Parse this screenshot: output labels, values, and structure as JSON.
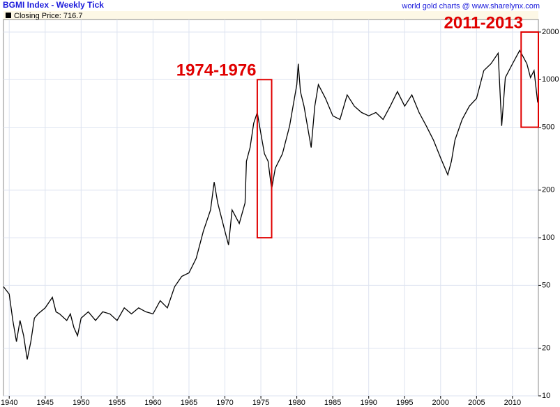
{
  "chart_data": {
    "type": "line",
    "title": "BGMI Index - Weekly Tick",
    "source": "world gold charts @ www.sharelynx.com",
    "log_scale": true,
    "grid": true,
    "xlim": [
      1939.2,
      2013.6
    ],
    "ylim": [
      10,
      2400
    ],
    "xticks": [
      1940,
      1945,
      1950,
      1955,
      1960,
      1965,
      1970,
      1975,
      1980,
      1985,
      1990,
      1995,
      2000,
      2005,
      2010
    ],
    "yticks": [
      10,
      20,
      50,
      100,
      200,
      500,
      1000,
      2000
    ],
    "x": [
      1939.2,
      1940,
      1940.5,
      1941,
      1941.5,
      1942,
      1942.5,
      1943,
      1943.5,
      1944,
      1945,
      1946,
      1946.5,
      1947,
      1948,
      1948.5,
      1949,
      1949.5,
      1950,
      1951,
      1952,
      1953,
      1954,
      1955,
      1956,
      1957,
      1958,
      1959,
      1960,
      1961,
      1962,
      1963,
      1964,
      1965,
      1966,
      1967,
      1968,
      1968.5,
      1969,
      1970,
      1970.5,
      1971,
      1972,
      1972.8,
      1973,
      1973.5,
      1974,
      1974.5,
      1975,
      1975.5,
      1976,
      1976.5,
      1977,
      1978,
      1979,
      1980,
      1980.2,
      1980.5,
      1981,
      1982,
      1982.5,
      1983,
      1984,
      1985,
      1986,
      1987,
      1988,
      1989,
      1990,
      1991,
      1992,
      1993,
      1994,
      1995,
      1996,
      1997,
      1998,
      1999,
      2000,
      2001,
      2001.5,
      2002,
      2003,
      2004,
      2005,
      2006,
      2007,
      2008,
      2008.5,
      2009,
      2010,
      2011,
      2011.5,
      2012,
      2012.5,
      2013,
      2013.5
    ],
    "series": [
      {
        "name": "Closing Price: 716.7",
        "color": "#000000",
        "values": [
          49,
          44,
          30,
          22,
          30,
          24,
          17,
          22,
          31,
          33,
          36,
          42,
          34,
          33,
          30,
          33,
          27,
          24,
          31,
          34,
          30,
          34,
          33,
          30,
          36,
          33,
          36,
          34,
          33,
          40,
          36,
          49,
          57,
          60,
          74,
          110,
          150,
          225,
          166,
          110,
          90,
          150,
          123,
          166,
          305,
          372,
          530,
          620,
          455,
          340,
          305,
          203,
          275,
          340,
          510,
          930,
          1260,
          840,
          680,
          372,
          680,
          930,
          760,
          590,
          560,
          800,
          680,
          620,
          590,
          620,
          560,
          680,
          840,
          680,
          800,
          620,
          510,
          415,
          320,
          250,
          305,
          415,
          560,
          680,
          760,
          1140,
          1260,
          1470,
          510,
          1030,
          1260,
          1530,
          1390,
          1260,
          1030,
          1140,
          716.7
        ]
      }
    ],
    "annotations": [
      {
        "label": "1974-1976",
        "x0": 1974.5,
        "x1": 1976.5,
        "y0": 100,
        "y1": 1000
      },
      {
        "label": "2011-2013",
        "x0": 2011.2,
        "x1": 2013.6,
        "y0": 500,
        "y1": 2000
      }
    ]
  }
}
